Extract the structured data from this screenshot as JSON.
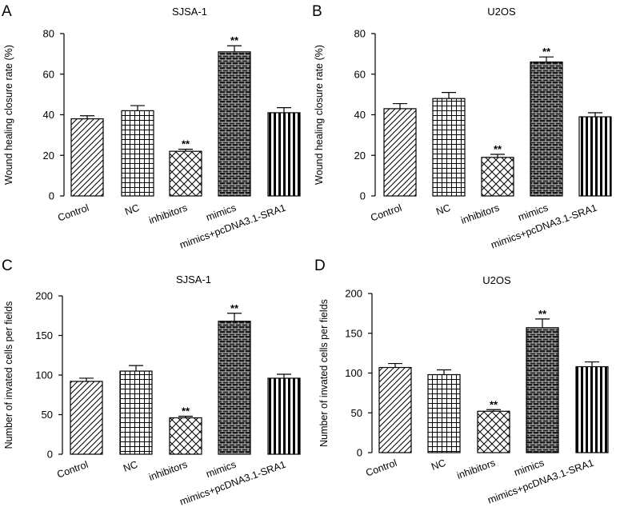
{
  "chart_data": [
    {
      "panel": "A",
      "type": "bar",
      "title": "SJSA-1",
      "ylabel": "Wound healing closure rate (%)",
      "xlabel": "",
      "ylim": [
        0,
        80
      ],
      "yticks": [
        0,
        20,
        40,
        60,
        80
      ],
      "categories": [
        "Control",
        "NC",
        "inhibitors",
        "mimics",
        "mimics+pcDNA3.1-SRA1"
      ],
      "values": [
        38,
        42,
        22,
        71,
        41
      ],
      "errors": [
        1.5,
        2.5,
        1,
        3,
        2.5
      ],
      "significance": [
        "",
        "",
        "**",
        "**",
        ""
      ],
      "patterns": [
        "diag",
        "grid",
        "cross",
        "brick",
        "vstripe"
      ]
    },
    {
      "panel": "B",
      "type": "bar",
      "title": "U2OS",
      "ylabel": "Wound healing closure rate (%)",
      "xlabel": "",
      "ylim": [
        0,
        80
      ],
      "yticks": [
        0,
        20,
        40,
        60,
        80
      ],
      "categories": [
        "Control",
        "NC",
        "inhibitors",
        "mimics",
        "mimics+pcDNA3.1-SRA1"
      ],
      "values": [
        43,
        48,
        19,
        66,
        39
      ],
      "errors": [
        2.5,
        3,
        1.5,
        2.5,
        2
      ],
      "significance": [
        "",
        "",
        "**",
        "**",
        ""
      ],
      "patterns": [
        "diag",
        "grid",
        "cross",
        "brick",
        "vstripe"
      ]
    },
    {
      "panel": "C",
      "type": "bar",
      "title": "SJSA-1",
      "ylabel": "Number of invated cells per fields",
      "xlabel": "",
      "ylim": [
        0,
        200
      ],
      "yticks": [
        0,
        50,
        100,
        150,
        200
      ],
      "categories": [
        "Control",
        "NC",
        "inhibitors",
        "mimics",
        "mimics+pcDNA3.1-SRA1"
      ],
      "values": [
        92,
        105,
        46,
        168,
        96
      ],
      "errors": [
        4,
        7,
        2,
        10,
        5
      ],
      "significance": [
        "",
        "",
        "**",
        "**",
        ""
      ],
      "patterns": [
        "diag",
        "grid",
        "cross",
        "brick",
        "vstripe"
      ]
    },
    {
      "panel": "D",
      "type": "bar",
      "title": "U2OS",
      "ylabel": "Number of invated cells per fields",
      "xlabel": "",
      "ylim": [
        0,
        200
      ],
      "yticks": [
        0,
        50,
        100,
        150,
        200
      ],
      "categories": [
        "Control",
        "NC",
        "inhibitors",
        "mimics",
        "mimics+pcDNA3.1-SRA1"
      ],
      "values": [
        107,
        98,
        52,
        157,
        108
      ],
      "errors": [
        5,
        6,
        2,
        11,
        6
      ],
      "significance": [
        "",
        "",
        "**",
        "**",
        ""
      ],
      "patterns": [
        "diag",
        "grid",
        "cross",
        "brick",
        "vstripe"
      ]
    }
  ]
}
